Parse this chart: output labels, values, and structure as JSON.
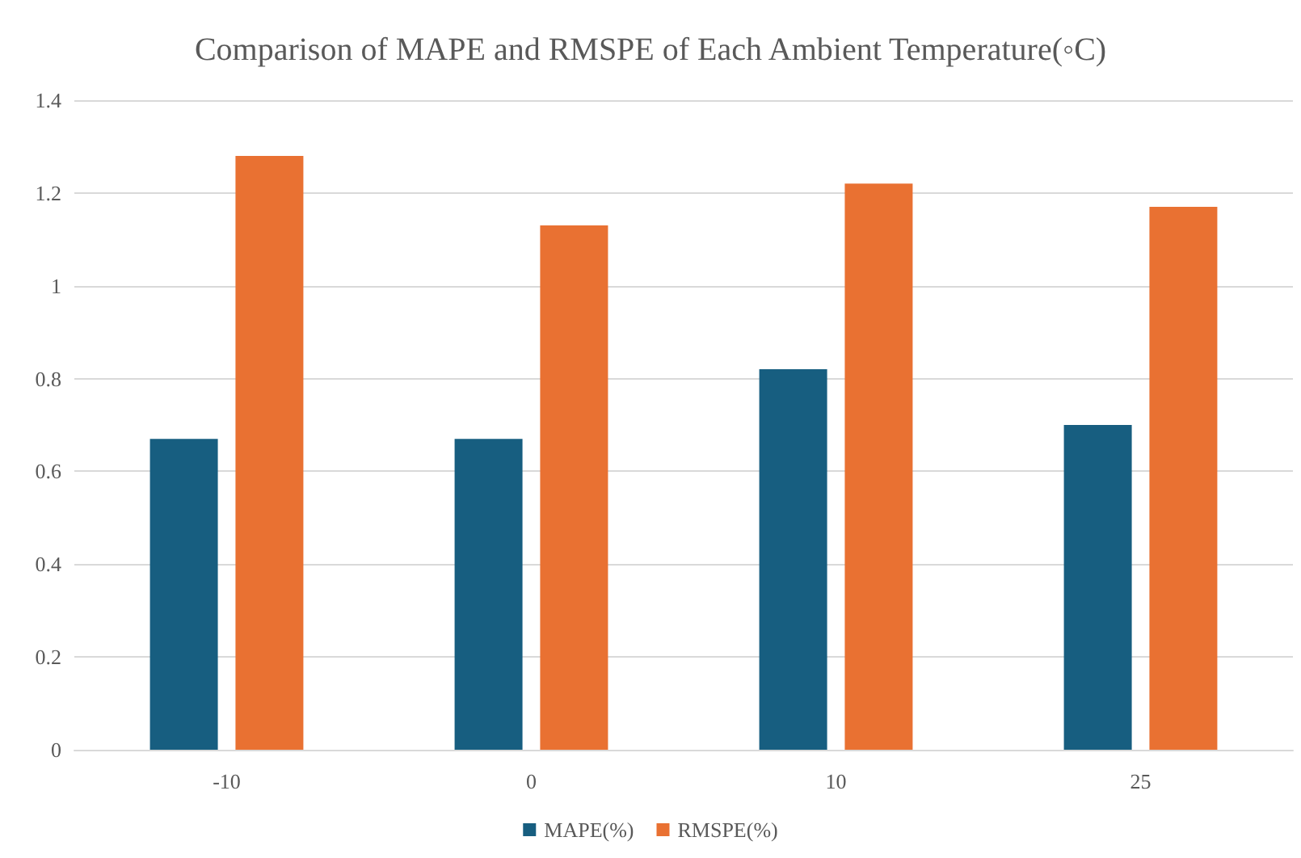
{
  "chart_data": {
    "type": "bar",
    "title": "Comparison of MAPE and RMSPE of Each Ambient Temperature(◦C)",
    "categories": [
      "-10",
      "0",
      "10",
      "25"
    ],
    "series": [
      {
        "name": "MAPE(%)",
        "color": "#175e80",
        "values": [
          0.67,
          0.67,
          0.82,
          0.7
        ]
      },
      {
        "name": "RMSPE(%)",
        "color": "#e97132",
        "values": [
          1.28,
          1.13,
          1.22,
          1.17
        ]
      }
    ],
    "ylim": [
      0,
      1.4
    ],
    "yticks": [
      0,
      0.2,
      0.4,
      0.6,
      0.8,
      1,
      1.2,
      1.4
    ],
    "grid": "y",
    "legend": "bottom"
  }
}
